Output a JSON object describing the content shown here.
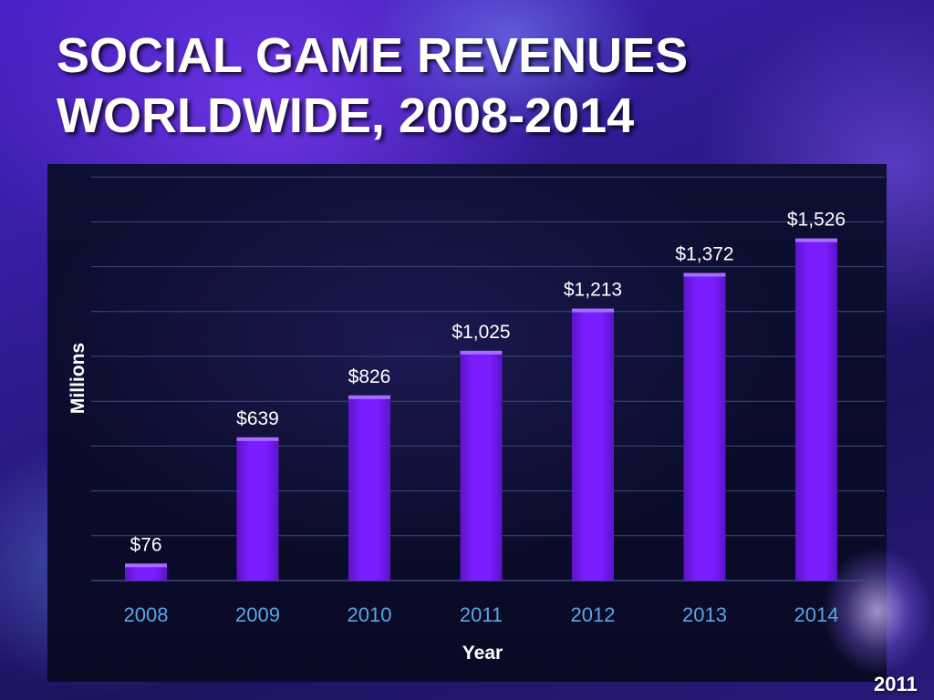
{
  "slide": {
    "title_line1": "SOCIAL GAME REVENUES",
    "title_line2": "WORLDWIDE, 2008-2014",
    "badge_text": "2011"
  },
  "colors": {
    "bar": "#7a1dff",
    "bar_top": "#a86bff",
    "gridline": "#3a4a78",
    "tick_label": "#5aa6e6",
    "data_label": "#ffffff"
  },
  "chart_data": {
    "type": "bar",
    "title": "SOCIAL GAME REVENUES WORLDWIDE, 2008-2014",
    "xlabel": "Year",
    "ylabel": "Millions",
    "categories": [
      "2008",
      "2009",
      "2010",
      "2011",
      "2012",
      "2013",
      "2014"
    ],
    "values": [
      76,
      639,
      826,
      1025,
      1213,
      1372,
      1526
    ],
    "data_labels": [
      "$76",
      "$639",
      "$826",
      "$1,025",
      "$1,213",
      "$1,372",
      "$1,526"
    ],
    "ylim": [
      0,
      1800
    ],
    "grid": true,
    "legend": "none"
  }
}
